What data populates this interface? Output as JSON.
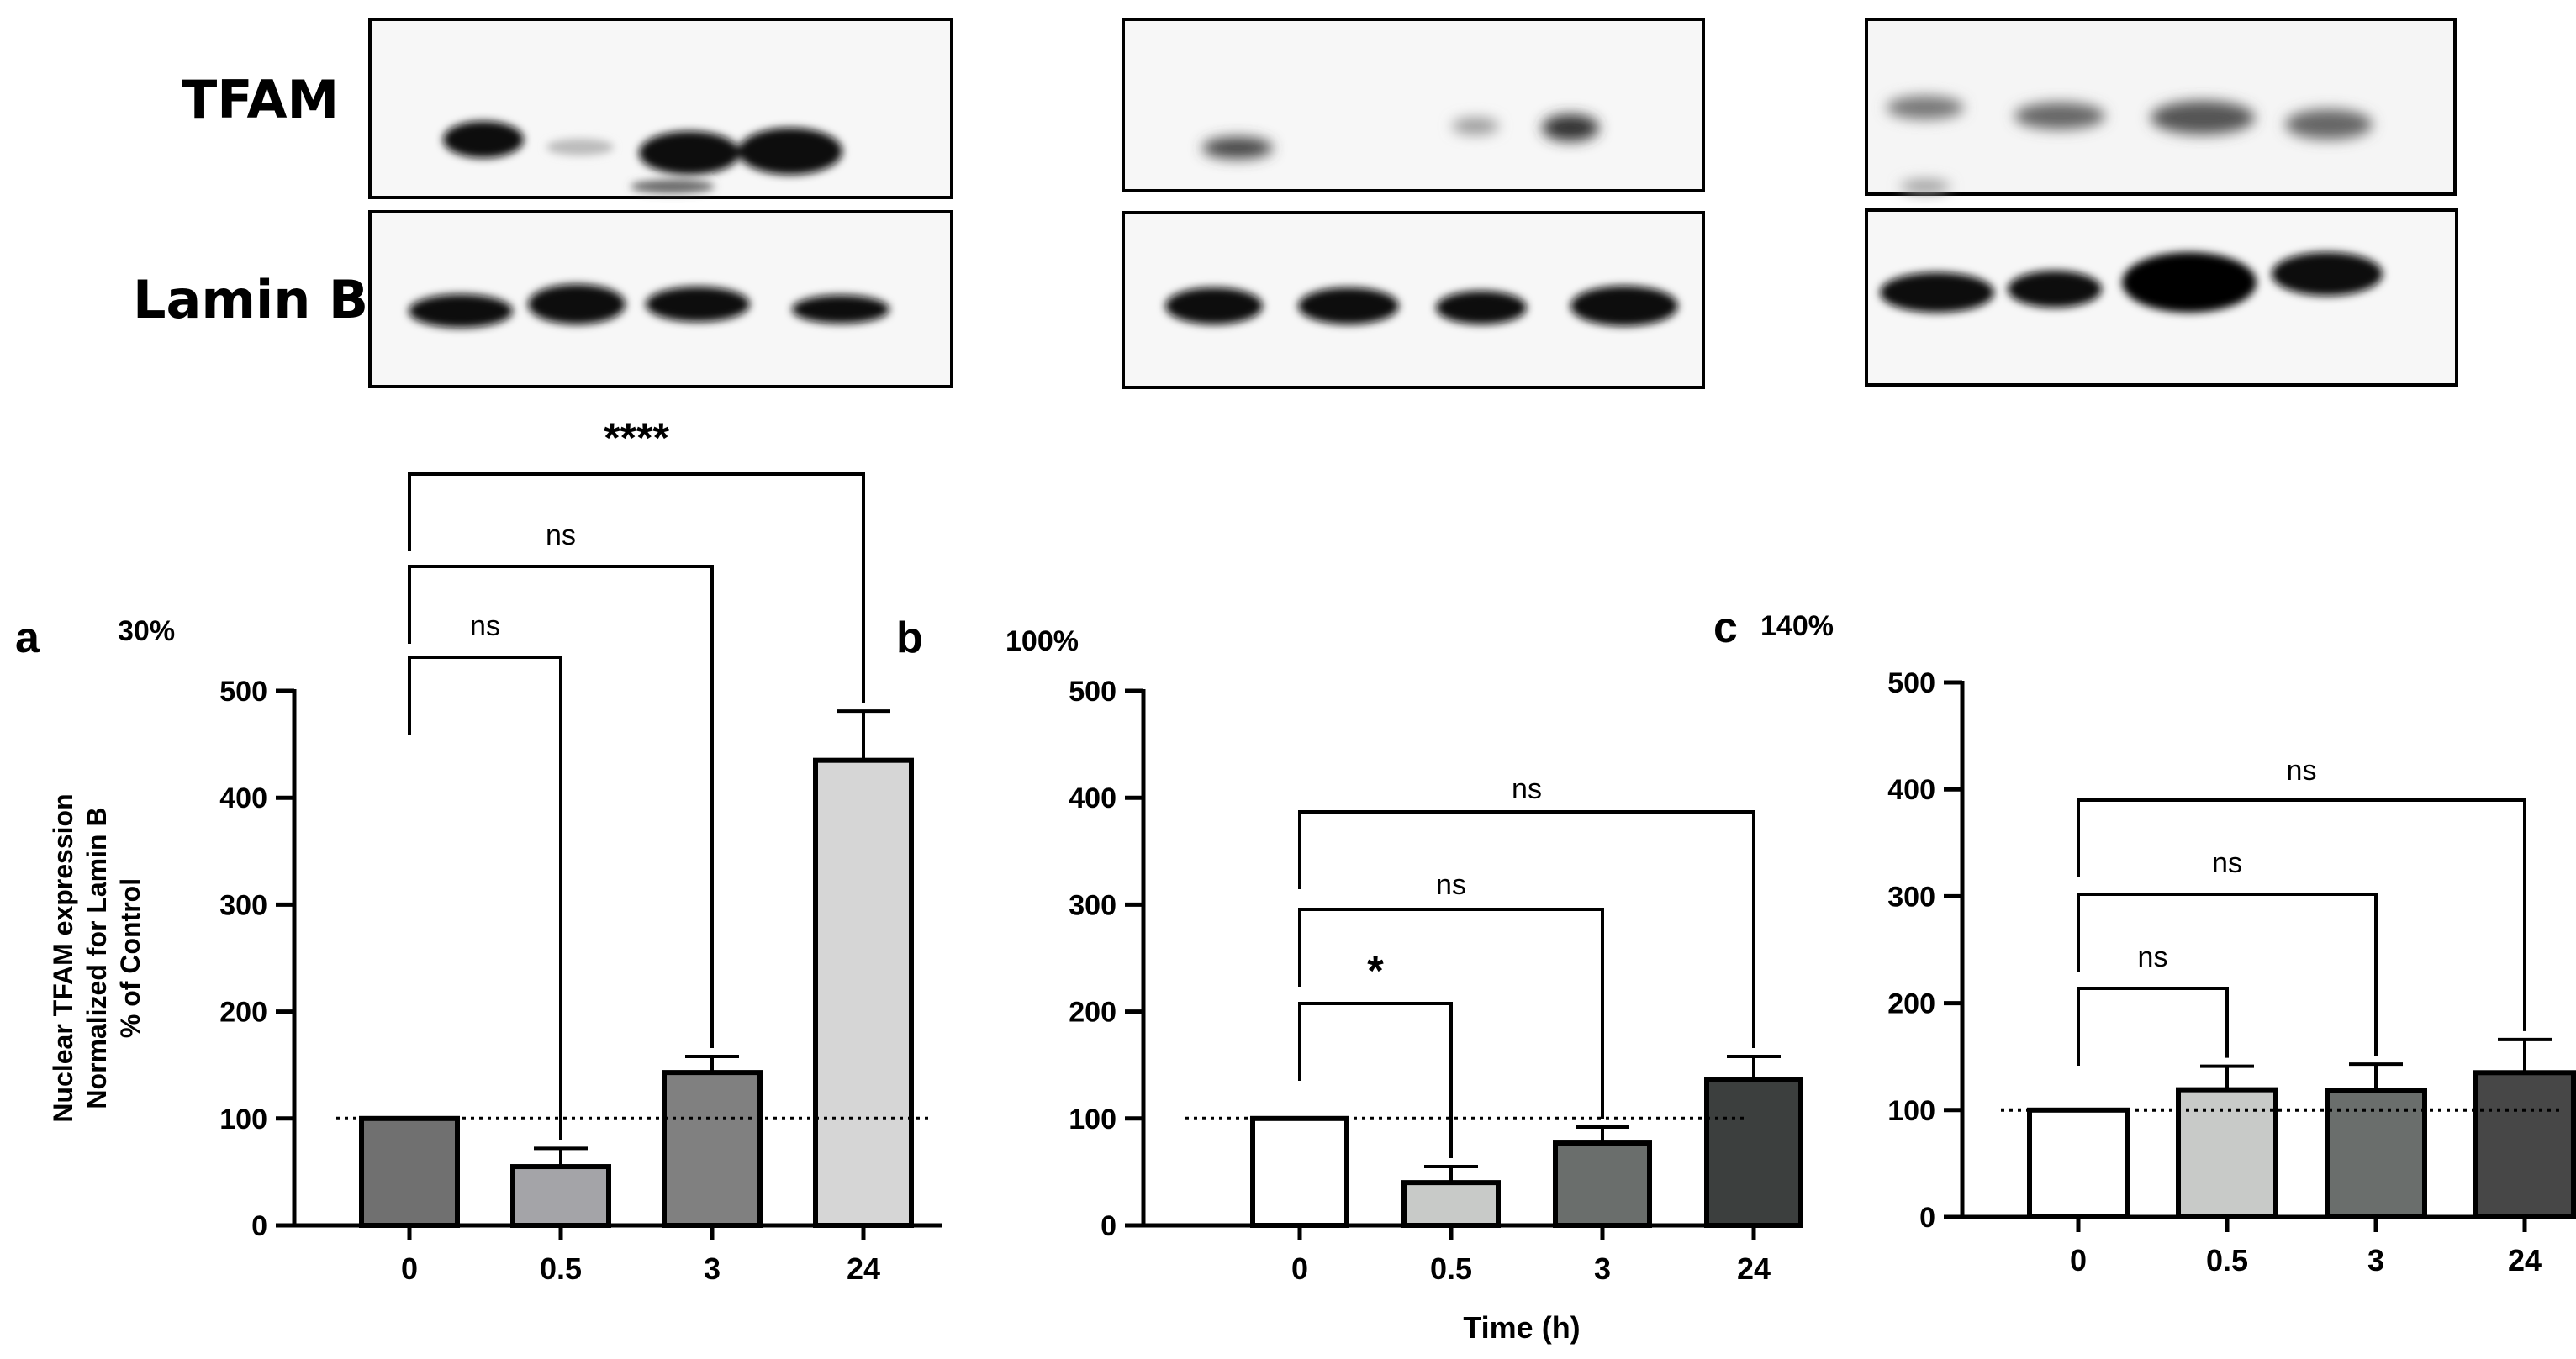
{
  "blot": {
    "row_labels": [
      "TFAM",
      "Lamin B"
    ]
  },
  "y_axis_title_lines": [
    "Nuclear TFAM expression",
    "Normalized for Lamin B",
    "% of Control"
  ],
  "x_axis_title": "Time (h)",
  "colors": {
    "axis": "#000000",
    "reference_line": "#000000"
  },
  "chart_data": [
    {
      "type": "bar",
      "panel_letter": "a",
      "percent_label": "30%",
      "categories": [
        "0",
        "0.5",
        "3",
        "24"
      ],
      "values": [
        100,
        55,
        143,
        435
      ],
      "errors": [
        0,
        17,
        15,
        46
      ],
      "bar_colors": [
        "#707070",
        "#a4a4a8",
        "#808080",
        "#d6d6d6"
      ],
      "ylim": [
        0,
        500
      ],
      "yticks": [
        0,
        100,
        200,
        300,
        400,
        500
      ],
      "reference_line": 100,
      "reference_line_style": "dotted",
      "comparisons": [
        {
          "from": "0",
          "to": "0.5",
          "label": "ns"
        },
        {
          "from": "0",
          "to": "3",
          "label": "ns"
        },
        {
          "from": "0",
          "to": "24",
          "label": "****"
        }
      ]
    },
    {
      "type": "bar",
      "panel_letter": "b",
      "percent_label": "100%",
      "categories": [
        "0",
        "0.5",
        "3",
        "24"
      ],
      "values": [
        100,
        40,
        77,
        136
      ],
      "errors": [
        0,
        15,
        15,
        22
      ],
      "bar_colors": [
        "#ffffff",
        "#c8cac8",
        "#6a6e6c",
        "#3c3f3e"
      ],
      "ylim": [
        0,
        500
      ],
      "yticks": [
        0,
        100,
        200,
        300,
        400,
        500
      ],
      "reference_line": 100,
      "reference_line_style": "dotted",
      "comparisons": [
        {
          "from": "0",
          "to": "0.5",
          "label": "*"
        },
        {
          "from": "0",
          "to": "3",
          "label": "ns"
        },
        {
          "from": "0",
          "to": "24",
          "label": "ns"
        }
      ]
    },
    {
      "type": "bar",
      "panel_letter": "c",
      "percent_label": "140%",
      "categories": [
        "0",
        "0.5",
        "3",
        "24"
      ],
      "values": [
        100,
        119,
        118,
        135
      ],
      "errors": [
        0,
        22,
        25,
        31
      ],
      "bar_colors": [
        "#ffffff",
        "#c8cac8",
        "#6a6e6c",
        "#474747"
      ],
      "ylim": [
        0,
        500
      ],
      "yticks": [
        0,
        100,
        200,
        300,
        400,
        500
      ],
      "reference_line": 100,
      "reference_line_style": "dotted",
      "comparisons": [
        {
          "from": "0",
          "to": "0.5",
          "label": "ns"
        },
        {
          "from": "0",
          "to": "3",
          "label": "ns"
        },
        {
          "from": "0",
          "to": "24",
          "label": "ns"
        }
      ]
    }
  ]
}
